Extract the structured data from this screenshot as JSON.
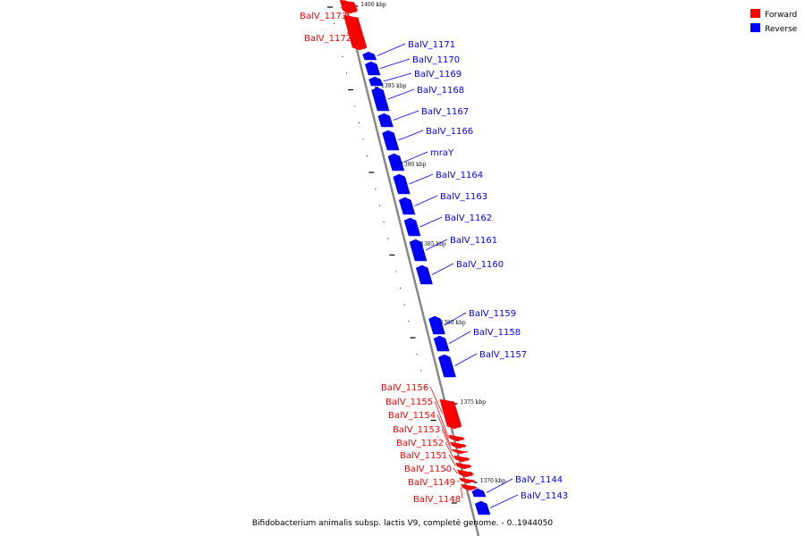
{
  "colors": {
    "forward": "#ff0000",
    "reverse": "#0000ff",
    "backbone": "#888888",
    "tick": "#000000"
  },
  "legend": [
    {
      "label": "Forward",
      "strand": "forward"
    },
    {
      "label": "Reverse",
      "strand": "reverse"
    }
  ],
  "footer": "Bifidobacterium animalis subsp. lactis V9, complete genome. - 0..1944050",
  "scale_labels": [
    "1400 kbp",
    "1395 kbp",
    "1390 kbp",
    "1385 kbp",
    "1380 kbp",
    "1375 kbp",
    "1370 kbp"
  ],
  "genes": [
    {
      "name": "BalV_1173",
      "strand": "forward"
    },
    {
      "name": "BalV_1172",
      "strand": "forward"
    },
    {
      "name": "BalV_1171",
      "strand": "reverse"
    },
    {
      "name": "BalV_1170",
      "strand": "reverse"
    },
    {
      "name": "BalV_1169",
      "strand": "reverse"
    },
    {
      "name": "BalV_1168",
      "strand": "reverse"
    },
    {
      "name": "BalV_1167",
      "strand": "reverse"
    },
    {
      "name": "BalV_1166",
      "strand": "reverse"
    },
    {
      "name": "mraY",
      "strand": "reverse"
    },
    {
      "name": "BalV_1164",
      "strand": "reverse"
    },
    {
      "name": "BalV_1163",
      "strand": "reverse"
    },
    {
      "name": "BalV_1162",
      "strand": "reverse"
    },
    {
      "name": "BalV_1161",
      "strand": "reverse"
    },
    {
      "name": "BalV_1160",
      "strand": "reverse"
    },
    {
      "name": "BalV_1159",
      "strand": "reverse"
    },
    {
      "name": "BalV_1158",
      "strand": "reverse"
    },
    {
      "name": "BalV_1157",
      "strand": "reverse"
    },
    {
      "name": "BalV_1156",
      "strand": "forward"
    },
    {
      "name": "BalV_1155",
      "strand": "forward"
    },
    {
      "name": "BalV_1154",
      "strand": "forward"
    },
    {
      "name": "BalV_1153",
      "strand": "forward"
    },
    {
      "name": "BalV_1152",
      "strand": "forward"
    },
    {
      "name": "BalV_1151",
      "strand": "forward"
    },
    {
      "name": "BalV_1150",
      "strand": "forward"
    },
    {
      "name": "BalV_1149",
      "strand": "forward"
    },
    {
      "name": "BalV_1148",
      "strand": "forward"
    },
    {
      "name": "BalV_1144",
      "strand": "reverse"
    },
    {
      "name": "BalV_1143",
      "strand": "reverse"
    }
  ]
}
